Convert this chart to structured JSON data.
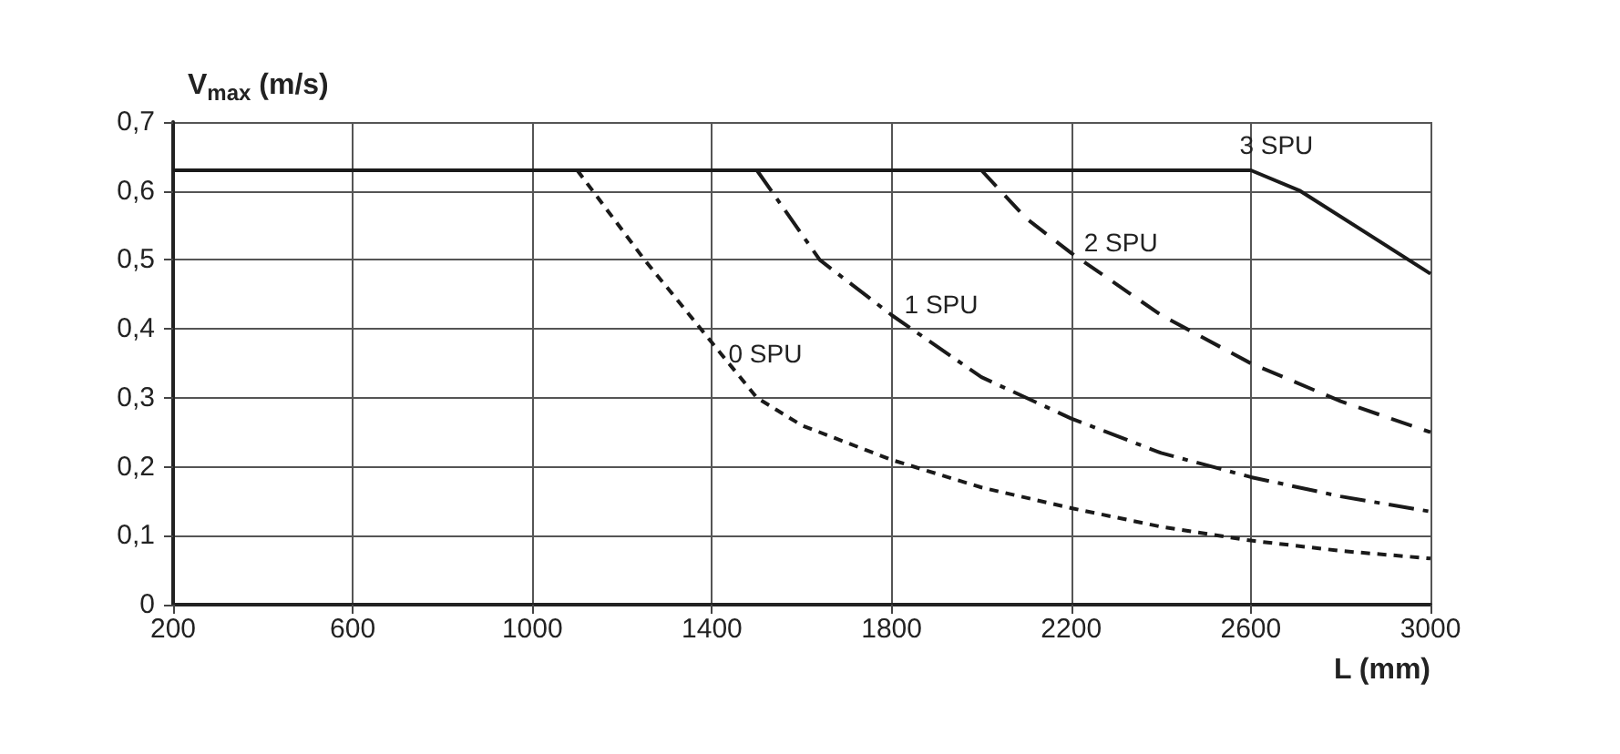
{
  "chart_data": {
    "type": "line",
    "ylabel": "V$_{max}$ (m/s)",
    "xlabel": "L (mm)",
    "xlim": [
      200,
      3000
    ],
    "xticks": [
      200,
      600,
      1000,
      1400,
      1800,
      2200,
      2600,
      3000
    ],
    "ylim": [
      0,
      0.7
    ],
    "yticks": [
      0,
      {
        "value": 0.1,
        "label": "0,1"
      },
      {
        "value": 0.2,
        "label": "0,2"
      },
      {
        "value": 0.3,
        "label": "0,3"
      },
      {
        "value": 0.4,
        "label": "0,4"
      },
      {
        "value": 0.5,
        "label": "0,5"
      },
      {
        "value": 0.6,
        "label": "0,6"
      },
      {
        "value": 0.7,
        "label": "0,7"
      }
    ],
    "grid": true,
    "legend": false,
    "marker": "none",
    "series": [
      {
        "name": "0 SPU",
        "color": "#1a1a1a",
        "line_style": "dotted",
        "x": [
          1100,
          1250,
          1400,
          1500,
          1600,
          1800,
          2000,
          2200,
          2400,
          2600,
          2800,
          3000
        ],
        "values": [
          0.63,
          0.5,
          0.38,
          0.3,
          0.26,
          0.21,
          0.17,
          0.14,
          0.113,
          0.093,
          0.078,
          0.067
        ]
      },
      {
        "name": "1 SPU",
        "color": "#1a1a1a",
        "line_style": "dashdot",
        "x": [
          1500,
          1640,
          1800,
          2000,
          2200,
          2400,
          2600,
          2800,
          3000
        ],
        "values": [
          0.63,
          0.5,
          0.42,
          0.33,
          0.27,
          0.22,
          0.185,
          0.157,
          0.135
        ]
      },
      {
        "name": "2 SPU",
        "color": "#1a1a1a",
        "line_style": "dashed",
        "x": [
          2000,
          2100,
          2200,
          2400,
          2600,
          2800,
          3000
        ],
        "values": [
          0.63,
          0.56,
          0.51,
          0.42,
          0.35,
          0.295,
          0.25
        ]
      },
      {
        "name": "3 SPU",
        "color": "#1a1a1a",
        "line_style": "solid",
        "x": [
          200,
          2600,
          2710,
          3000
        ],
        "values": [
          0.63,
          0.63,
          0.6,
          0.48
        ]
      }
    ]
  }
}
